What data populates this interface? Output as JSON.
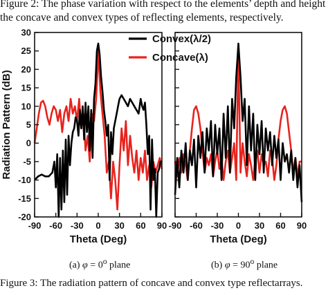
{
  "caption_top": {
    "line1": "Figure 2: The phase variation with respect to the elements’ depth and height",
    "line2": "the concave and convex types of reflecting elements, respectively."
  },
  "caption_bottom": "Figure 3: The radiation pattern of concave and convex type reflectarrays.",
  "subcaption_a": {
    "prefix": "(a)",
    "phi": "φ",
    "equals": " = 0",
    "sup": "o",
    "suffix": "  plane"
  },
  "subcaption_b": {
    "prefix": "(b)",
    "phi": "φ",
    "equals": " = 90",
    "sup": "o",
    "suffix": "  plane"
  },
  "colors": {
    "convex": "#000000",
    "concave": "#e8231e"
  },
  "chart_data": [
    {
      "type": "line",
      "subplot": "(a) φ = 0° plane",
      "xlabel": "Theta  (Deg)",
      "ylabel": "Radiation Pattern (dB)",
      "xlim": [
        -90,
        90
      ],
      "ylim": [
        -20,
        30
      ],
      "xticks": [
        -90,
        -60,
        -30,
        0,
        30,
        60,
        90
      ],
      "yticks": [
        -20,
        -15,
        -10,
        -5,
        0,
        5,
        10,
        15,
        20,
        25,
        30
      ],
      "legend_position": "top-right",
      "series": [
        {
          "name": "Convex(λ/2)",
          "color": "#000000",
          "x": [
            -90,
            -85,
            -80,
            -75,
            -70,
            -65,
            -62,
            -60,
            -58,
            -56,
            -54,
            -52,
            -50,
            -48,
            -46,
            -44,
            -42,
            -40,
            -38,
            -36,
            -34,
            -32,
            -30,
            -28,
            -26,
            -24,
            -22,
            -20,
            -18,
            -16,
            -14,
            -12,
            -10,
            -8,
            -6,
            -4,
            -2,
            0,
            2,
            4,
            6,
            8,
            10,
            12,
            14,
            16,
            18,
            20,
            22,
            24,
            26,
            28,
            30,
            33,
            36,
            39,
            42,
            45,
            48,
            51,
            54,
            57,
            60,
            62,
            64,
            66,
            68,
            70,
            72,
            74,
            76,
            78,
            80,
            82,
            84,
            86,
            88,
            90
          ],
          "y": [
            -10,
            -9,
            -8.5,
            -9,
            -9,
            -8,
            -5,
            -12,
            -3,
            -20,
            -4,
            -18,
            -2,
            -16,
            1,
            -14,
            2,
            -6,
            0,
            3,
            4,
            7,
            6,
            2,
            9,
            4,
            10,
            1,
            11,
            3,
            10,
            -2,
            9,
            -4,
            12,
            16,
            25,
            27,
            24,
            18,
            14,
            9,
            6,
            2,
            5,
            -10,
            3,
            -3,
            4,
            6,
            8,
            10,
            12,
            13,
            12,
            11,
            10,
            12,
            11,
            10,
            9,
            8,
            12,
            10,
            9,
            11,
            5,
            -3,
            2,
            -18,
            1,
            -10,
            -7,
            -20,
            -8,
            -7,
            -5,
            -5
          ]
        },
        {
          "name": "Concave(λ)",
          "color": "#e8231e",
          "x": [
            -90,
            -87,
            -84,
            -81,
            -78,
            -75,
            -72,
            -69,
            -66,
            -63,
            -60,
            -57,
            -54,
            -51,
            -48,
            -45,
            -42,
            -39,
            -36,
            -33,
            -30,
            -27,
            -24,
            -21,
            -18,
            -15,
            -12,
            -9,
            -6,
            -3,
            -1,
            0,
            1,
            3,
            6,
            9,
            12,
            15,
            18,
            21,
            24,
            27,
            30,
            33,
            36,
            39,
            42,
            45,
            48,
            51,
            54,
            57,
            60,
            63,
            66,
            69,
            72,
            75,
            78,
            81,
            84,
            87,
            90
          ],
          "y": [
            0,
            4,
            8,
            11,
            11.5,
            10,
            7,
            5,
            8,
            10,
            9,
            6,
            9,
            3,
            8,
            10,
            6,
            12,
            8,
            10,
            6,
            12,
            4,
            8,
            -2,
            2,
            -5,
            8,
            6,
            12,
            20,
            26,
            22,
            14,
            8,
            2,
            -8,
            -5,
            -15,
            -5,
            -10,
            -18,
            -6,
            4,
            -2,
            6,
            -6,
            2,
            -4,
            -8,
            -2,
            -10,
            -4,
            -8,
            -2,
            -10,
            -6,
            -12,
            -5,
            -8,
            -6,
            -4,
            -7
          ]
        }
      ]
    },
    {
      "type": "line",
      "subplot": "(b) φ = 90° plane",
      "xlabel": "Theta  (Deg)",
      "ylabel": "",
      "xlim": [
        -90,
        90
      ],
      "ylim": [
        -20,
        30
      ],
      "xticks": [
        -90,
        -60,
        -30,
        0,
        30,
        60,
        90
      ],
      "series": [
        {
          "name": "Convex(λ/2)",
          "color": "#000000",
          "x": [
            -90,
            -87,
            -84,
            -81,
            -78,
            -75,
            -72,
            -69,
            -66,
            -63,
            -60,
            -57,
            -54,
            -51,
            -48,
            -45,
            -42,
            -39,
            -36,
            -33,
            -30,
            -27,
            -24,
            -21,
            -18,
            -15,
            -12,
            -9,
            -6,
            -3,
            -1,
            0,
            1,
            3,
            6,
            9,
            12,
            15,
            18,
            21,
            24,
            27,
            30,
            33,
            36,
            39,
            42,
            45,
            48,
            51,
            54,
            57,
            60,
            63,
            66,
            69,
            72,
            75,
            78,
            81,
            84,
            87,
            90
          ],
          "y": [
            -14,
            -4,
            -12,
            -2,
            -8,
            0,
            -10,
            -2,
            -6,
            1,
            -12,
            2,
            -4,
            3,
            -8,
            4,
            -2,
            6,
            -9,
            5,
            -3,
            4,
            -10,
            8,
            -4,
            10,
            -8,
            12,
            4,
            18,
            24,
            27,
            24,
            18,
            6,
            12,
            -6,
            10,
            -2,
            8,
            -10,
            5,
            -3,
            6,
            -8,
            4,
            -2,
            3,
            -6,
            2,
            -4,
            1,
            -10,
            0,
            -5,
            -3,
            -8,
            -2,
            -10,
            -4,
            -12,
            -6,
            -16
          ]
        },
        {
          "name": "Concave(λ)",
          "color": "#e8231e",
          "x": [
            -90,
            -87,
            -84,
            -81,
            -78,
            -75,
            -72,
            -69,
            -66,
            -63,
            -60,
            -57,
            -54,
            -51,
            -48,
            -45,
            -42,
            -39,
            -36,
            -33,
            -30,
            -27,
            -24,
            -21,
            -18,
            -15,
            -12,
            -9,
            -6,
            -3,
            -1,
            0,
            1,
            3,
            6,
            9,
            12,
            15,
            18,
            21,
            24,
            27,
            30,
            33,
            36,
            39,
            42,
            45,
            48,
            51,
            54,
            57,
            60,
            63,
            66,
            69,
            72,
            75,
            78,
            81,
            84,
            87,
            90
          ],
          "y": [
            -5,
            -9,
            -4,
            -8,
            -3,
            -6,
            -10,
            -2,
            4,
            9,
            10,
            8,
            4,
            -2,
            -8,
            -4,
            -6,
            -3,
            -9,
            -5,
            -2,
            -7,
            -4,
            -10,
            -5,
            -2,
            -8,
            -4,
            0,
            -10,
            14,
            24,
            14,
            -8,
            0,
            -5,
            -9,
            -3,
            -6,
            -10,
            -4,
            -2,
            -8,
            -3,
            -6,
            -5,
            -9,
            -2,
            -4,
            -10,
            -6,
            1,
            6,
            9,
            10,
            8,
            3,
            -2,
            -8,
            -4,
            -9,
            -5,
            -5
          ]
        }
      ]
    }
  ]
}
